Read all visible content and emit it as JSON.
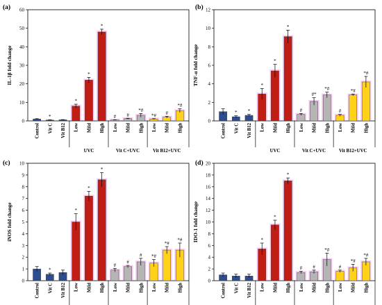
{
  "chart_data": [
    {
      "type": "bar",
      "panel": "(a)",
      "ylabel": "IL-1β fold change",
      "ylim": [
        0,
        60
      ],
      "yticks": [
        0,
        10,
        20,
        30,
        40,
        50,
        60
      ],
      "categories": [
        "Control",
        "Vit C",
        "Vit B12",
        "Low",
        "Mild",
        "High",
        "Low",
        "Mild",
        "High",
        "Low",
        "Mild",
        "High"
      ],
      "groups": [
        {
          "label": "UVC",
          "start": 3,
          "end": 5
        },
        {
          "label": "Vit C+UVC",
          "start": 6,
          "end": 8
        },
        {
          "label": "Vit B12+UVC",
          "start": 9,
          "end": 11
        }
      ],
      "values": [
        1,
        0.5,
        0.6,
        8,
        22,
        48,
        0.5,
        1.2,
        3,
        1,
        2,
        5.5
      ],
      "errors": [
        0.2,
        0.1,
        0.1,
        1,
        1.5,
        1.5,
        0.1,
        0.2,
        1,
        0.2,
        0.5,
        1
      ],
      "sig": [
        "",
        "*",
        "",
        "*",
        "*",
        "*",
        "#",
        "#",
        "*#",
        "*#",
        "#",
        "*#"
      ]
    },
    {
      "type": "bar",
      "panel": "(b)",
      "ylabel": "TNF-α fold change",
      "ylim": [
        0,
        12
      ],
      "yticks": [
        0,
        2,
        4,
        6,
        8,
        10,
        12
      ],
      "categories": [
        "Control",
        "Vit C",
        "Vit B12",
        "Low",
        "Mild",
        "High",
        "Low",
        "Mild",
        "High",
        "Low",
        "Mild",
        "High"
      ],
      "groups": [
        {
          "label": "UVC",
          "start": 3,
          "end": 5
        },
        {
          "label": "Vit C+UVC",
          "start": 6,
          "end": 8
        },
        {
          "label": "Vit B12+UVC",
          "start": 9,
          "end": 11
        }
      ],
      "values": [
        1,
        0.45,
        0.6,
        2.9,
        5.4,
        9.1,
        0.7,
        2.1,
        2.8,
        0.6,
        2.8,
        4.2
      ],
      "errors": [
        0.3,
        0.1,
        0.1,
        0.6,
        0.7,
        0.7,
        0.1,
        0.4,
        0.3,
        0.1,
        0.1,
        0.6
      ],
      "sig": [
        "",
        "*",
        "*",
        "*",
        "*",
        "*",
        "#",
        "#*",
        "*#",
        "#",
        "*#",
        "*#"
      ]
    },
    {
      "type": "bar",
      "panel": "(c)",
      "ylabel": "iNOS fold change",
      "ylim": [
        0,
        10
      ],
      "yticks": [
        0,
        1,
        2,
        3,
        4,
        5,
        6,
        7,
        8,
        9,
        10
      ],
      "categories": [
        "Control",
        "Vit C",
        "Vit B12",
        "Low",
        "Mild",
        "High",
        "Low",
        "Mild",
        "High",
        "Low",
        "Mild",
        "High"
      ],
      "groups": [
        {
          "label": "UVC",
          "start": 3,
          "end": 5
        },
        {
          "label": "Vit C+UVC",
          "start": 6,
          "end": 8
        },
        {
          "label": "Vit B12+UVC",
          "start": 9,
          "end": 11
        }
      ],
      "values": [
        1,
        0.55,
        0.7,
        5,
        7.2,
        8.6,
        0.9,
        1.2,
        1.6,
        1.5,
        2.6,
        2.6
      ],
      "errors": [
        0.2,
        0.1,
        0.2,
        0.7,
        0.4,
        0.6,
        0.15,
        0.1,
        0.3,
        0.3,
        0.3,
        0.6
      ],
      "sig": [
        "",
        "*",
        "",
        "*",
        "*",
        "*",
        "#",
        "#",
        "#",
        "*#",
        "*#",
        "*#"
      ]
    },
    {
      "type": "bar",
      "panel": "(d)",
      "ylabel": "IDO-1 fold change",
      "ylim": [
        0,
        20
      ],
      "yticks": [
        0,
        2,
        4,
        6,
        8,
        10,
        12,
        14,
        16,
        18,
        20
      ],
      "categories": [
        "Control",
        "Vit C",
        "Vit B12",
        "Low",
        "Mild",
        "High",
        "Low",
        "Mild",
        "High",
        "Low",
        "Mild",
        "High"
      ],
      "groups": [
        {
          "label": "UVC",
          "start": 3,
          "end": 5
        },
        {
          "label": "Vit C+UVC",
          "start": 6,
          "end": 8
        },
        {
          "label": "Vit B12+UVC",
          "start": 9,
          "end": 11
        }
      ],
      "values": [
        1,
        0.8,
        0.8,
        5.4,
        9.5,
        17,
        1.4,
        1.5,
        3.6,
        1.6,
        2.2,
        3.2
      ],
      "errors": [
        0.3,
        0.3,
        0.3,
        1,
        0.8,
        0.5,
        0.2,
        0.3,
        1.1,
        0.2,
        0.6,
        0.6
      ],
      "sig": [
        "",
        "",
        "",
        "*",
        "*",
        "*",
        "#",
        "#",
        "*#",
        "#",
        "*#",
        "*#"
      ]
    }
  ],
  "colors": {
    "control": "#2e4d8f",
    "uvc": "#c01e14",
    "vitc_uvc": "#b5b5b5",
    "vitb12_uvc": "#ffd21a",
    "glow": "#ee66e0"
  }
}
